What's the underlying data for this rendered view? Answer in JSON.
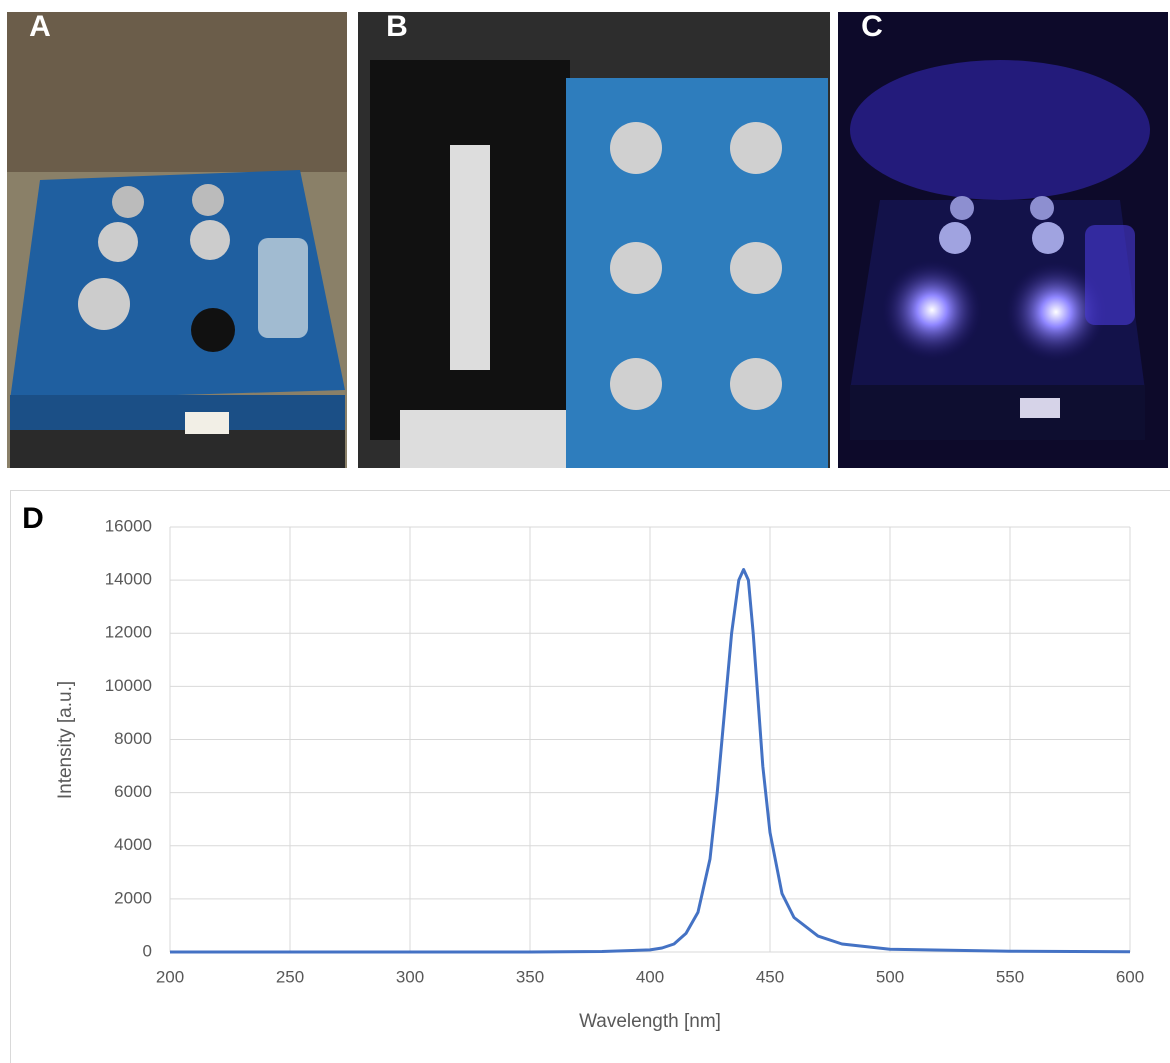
{
  "panels": [
    "A",
    "B",
    "C"
  ],
  "chart_data": {
    "type": "line",
    "label": "D",
    "xlabel": "Wavelength [nm]",
    "ylabel": "Intensity [a.u.]",
    "x": [
      200,
      250,
      300,
      350,
      380,
      400,
      405,
      410,
      415,
      420,
      425,
      428,
      431,
      434,
      437,
      439,
      441,
      443,
      445,
      447,
      450,
      455,
      460,
      470,
      480,
      500,
      550,
      600
    ],
    "values": [
      0,
      0,
      0,
      0,
      20,
      80,
      150,
      300,
      700,
      1500,
      3500,
      6000,
      9000,
      12000,
      14000,
      14400,
      14000,
      12000,
      9500,
      7000,
      4500,
      2200,
      1300,
      600,
      300,
      100,
      30,
      10
    ],
    "color": "#4472c4",
    "xlim": [
      200,
      600
    ],
    "xticks": [
      200,
      250,
      300,
      350,
      400,
      450,
      500,
      550,
      600
    ],
    "ylim": [
      0,
      16000
    ],
    "yticks": [
      0,
      2000,
      4000,
      6000,
      8000,
      10000,
      12000,
      14000,
      16000
    ],
    "grid": true
  }
}
